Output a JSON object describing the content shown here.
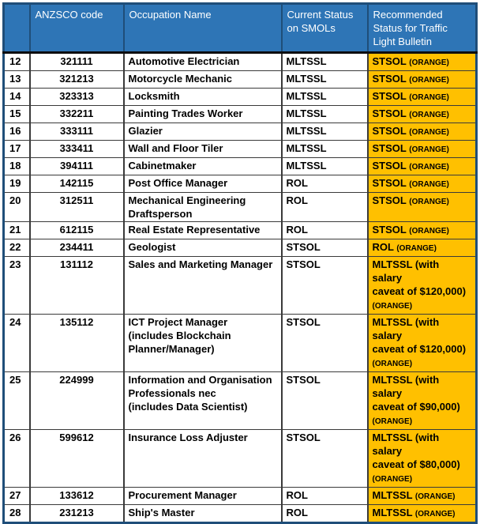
{
  "table": {
    "headers": [
      {
        "label": "",
        "name": "row-number"
      },
      {
        "label": "ANZSCO code",
        "name": "anzsco-code"
      },
      {
        "label": "Occupation Name",
        "name": "occupation-name"
      },
      {
        "label": "Current Status on SMOLs",
        "name": "current-status"
      },
      {
        "label": "Recommended Status for Traffic Light Bulletin",
        "name": "recommended-status"
      }
    ],
    "rows": [
      {
        "num": "12",
        "code": "321111",
        "occupation": "Automotive Electrician",
        "current": "MLTSSL",
        "recommended": "STSOL",
        "tag": "(ORANGE)"
      },
      {
        "num": "13",
        "code": "321213",
        "occupation": "Motorcycle Mechanic",
        "current": "MLTSSL",
        "recommended": "STSOL",
        "tag": "(ORANGE)"
      },
      {
        "num": "14",
        "code": "323313",
        "occupation": "Locksmith",
        "current": "MLTSSL",
        "recommended": "STSOL",
        "tag": "(ORANGE)"
      },
      {
        "num": "15",
        "code": "332211",
        "occupation": "Painting Trades Worker",
        "current": "MLTSSL",
        "recommended": "STSOL",
        "tag": "(ORANGE)"
      },
      {
        "num": "16",
        "code": "333111",
        "occupation": "Glazier",
        "current": "MLTSSL",
        "recommended": "STSOL",
        "tag": "(ORANGE)"
      },
      {
        "num": "17",
        "code": "333411",
        "occupation": "Wall and Floor Tiler",
        "current": "MLTSSL",
        "recommended": "STSOL",
        "tag": "(ORANGE)"
      },
      {
        "num": "18",
        "code": "394111",
        "occupation": "Cabinetmaker",
        "current": "MLTSSL",
        "recommended": "STSOL",
        "tag": "(ORANGE)"
      },
      {
        "num": "19",
        "code": "142115",
        "occupation": "Post Office Manager",
        "current": "ROL",
        "recommended": "STSOL",
        "tag": "(ORANGE)"
      },
      {
        "num": "20",
        "code": "312511",
        "occupation": "Mechanical Engineering\nDraftsperson",
        "current": "ROL",
        "recommended": "STSOL",
        "tag": "(ORANGE)"
      },
      {
        "num": "21",
        "code": "612115",
        "occupation": "Real Estate Representative",
        "current": "ROL",
        "recommended": "STSOL",
        "tag": "(ORANGE)"
      },
      {
        "num": "22",
        "code": "234411",
        "occupation": "Geologist",
        "current": "STSOL",
        "recommended": "ROL",
        "tag": "(ORANGE)"
      },
      {
        "num": "23",
        "code": "131112",
        "occupation": "Sales and Marketing Manager",
        "current": "STSOL",
        "recommended": "MLTSSL (with salary\ncaveat of $120,000)",
        "tag": "(ORANGE)"
      },
      {
        "num": "24",
        "code": "135112",
        "occupation": "ICT Project Manager\n(includes Blockchain\nPlanner/Manager)",
        "current": "STSOL",
        "recommended": "MLTSSL (with salary\ncaveat of $120,000)",
        "tag": "(ORANGE)"
      },
      {
        "num": "25",
        "code": "224999",
        "occupation": "Information and Organisation\nProfessionals nec\n(includes Data Scientist)",
        "current": "STSOL",
        "recommended": "MLTSSL (with salary\ncaveat of $90,000)",
        "tag": "(ORANGE)"
      },
      {
        "num": "26",
        "code": "599612",
        "occupation": "Insurance Loss Adjuster",
        "current": "STSOL",
        "recommended": "MLTSSL (with salary\ncaveat of $80,000)",
        "tag": "(ORANGE)"
      },
      {
        "num": "27",
        "code": "133612",
        "occupation": "Procurement Manager",
        "current": "ROL",
        "recommended": "MLTSSL",
        "tag": "(ORANGE)"
      },
      {
        "num": "28",
        "code": "231213",
        "occupation": "Ship's Master",
        "current": "ROL",
        "recommended": "MLTSSL",
        "tag": "(ORANGE)"
      }
    ]
  },
  "colors": {
    "header_bg": "#2E75B6",
    "header_text": "#FFFFFF",
    "highlight_bg": "#FFC000",
    "outer_border": "#1F4E79",
    "body_text": "#000000"
  }
}
